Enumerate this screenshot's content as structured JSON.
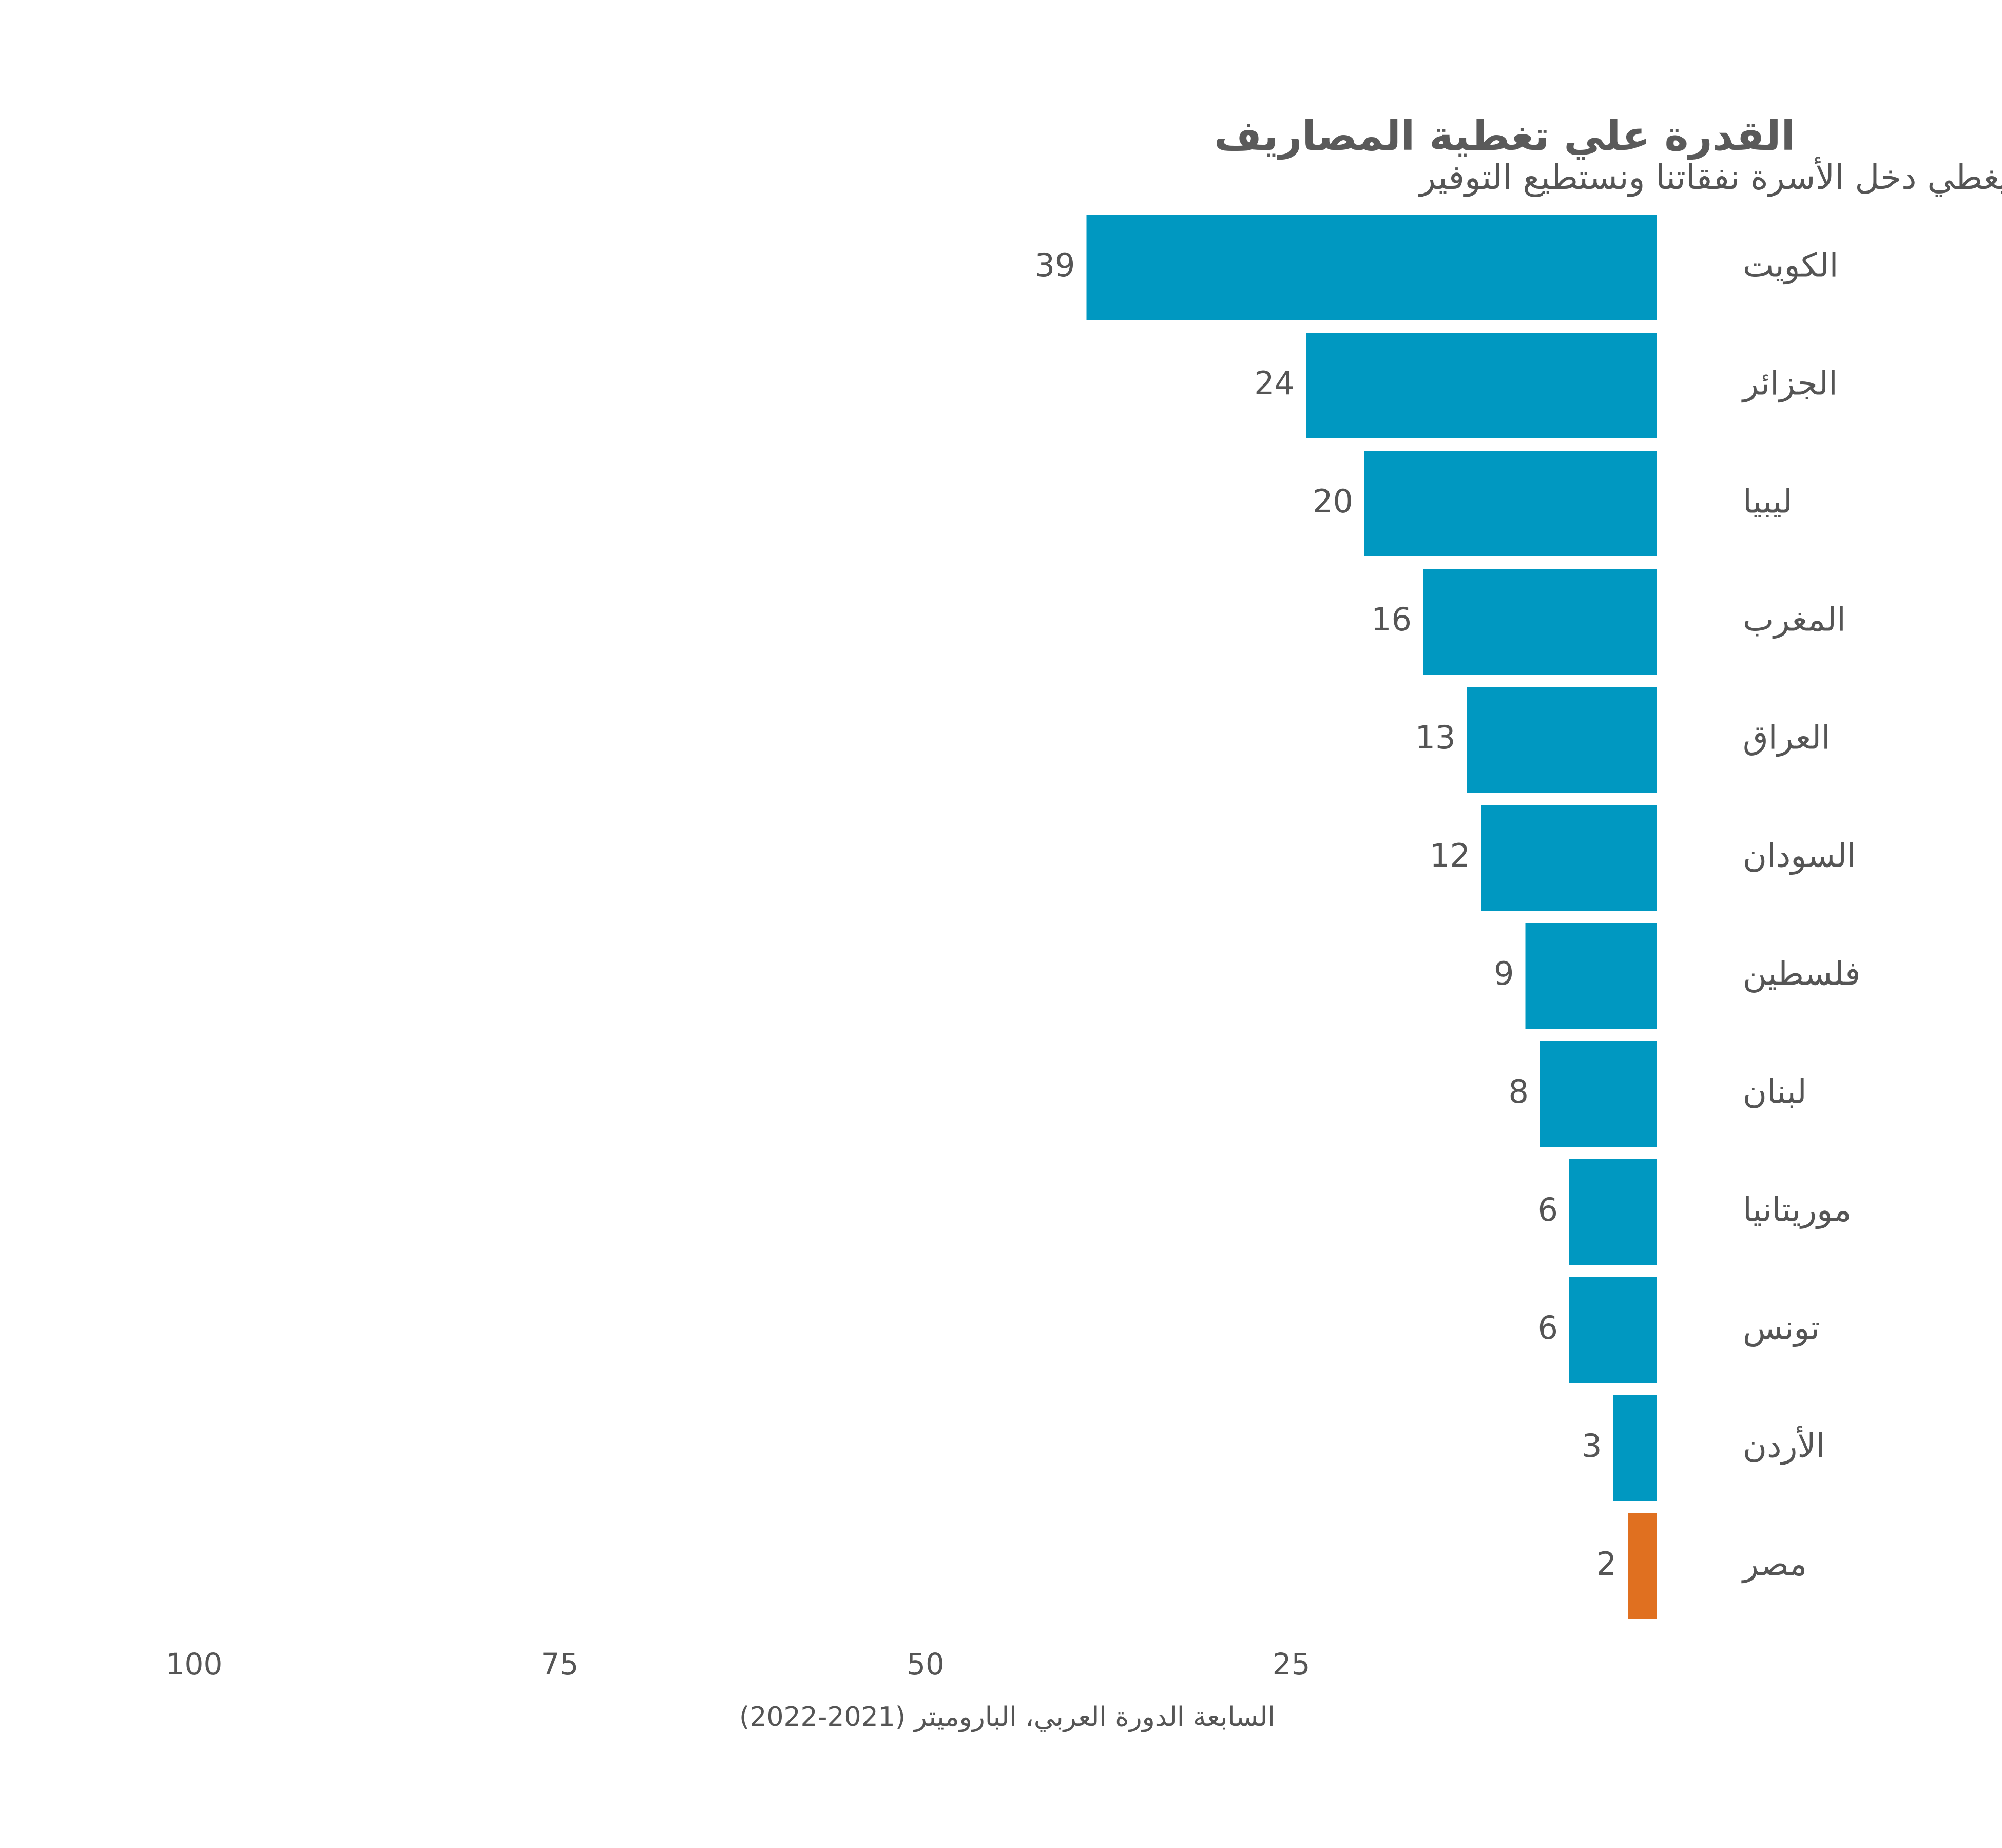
{
  "chart_data": {
    "type": "bar",
    "orientation": "horizontal",
    "title": "القدرة علي تغطية المصاريف",
    "subtitle": "% من يقولون يغطي دخل الأسرة نفقاتنا ونستطيع التوفير",
    "categories": [
      "الكويت",
      "الجزائر",
      "ليبيا",
      "المغرب",
      "العراق",
      "السودان",
      "فلسطين",
      "لبنان",
      "موريتانيا",
      "تونس",
      "الأردن",
      "مصر"
    ],
    "values": [
      39,
      24,
      20,
      16,
      13,
      12,
      9,
      8,
      6,
      6,
      3,
      2
    ],
    "value_labels": [
      "39",
      "24",
      "20",
      "16",
      "13",
      "12",
      "9",
      "8",
      "6",
      "6",
      "3",
      "2"
    ],
    "highlight_category": "مصر",
    "xlim": [
      0,
      100
    ],
    "x_direction": "right-to-left",
    "x_ticks": [
      100,
      75,
      50,
      25
    ],
    "x_tick_labels": [
      "100",
      "75",
      "50",
      "25"
    ],
    "grid": false,
    "source": "السابعة الدورة العربي، الباروميتر (2021-2022)",
    "colors": {
      "bar": "#0098c1",
      "highlight": "#e07020",
      "text": "#555555",
      "title": "#5a5a5a"
    }
  }
}
